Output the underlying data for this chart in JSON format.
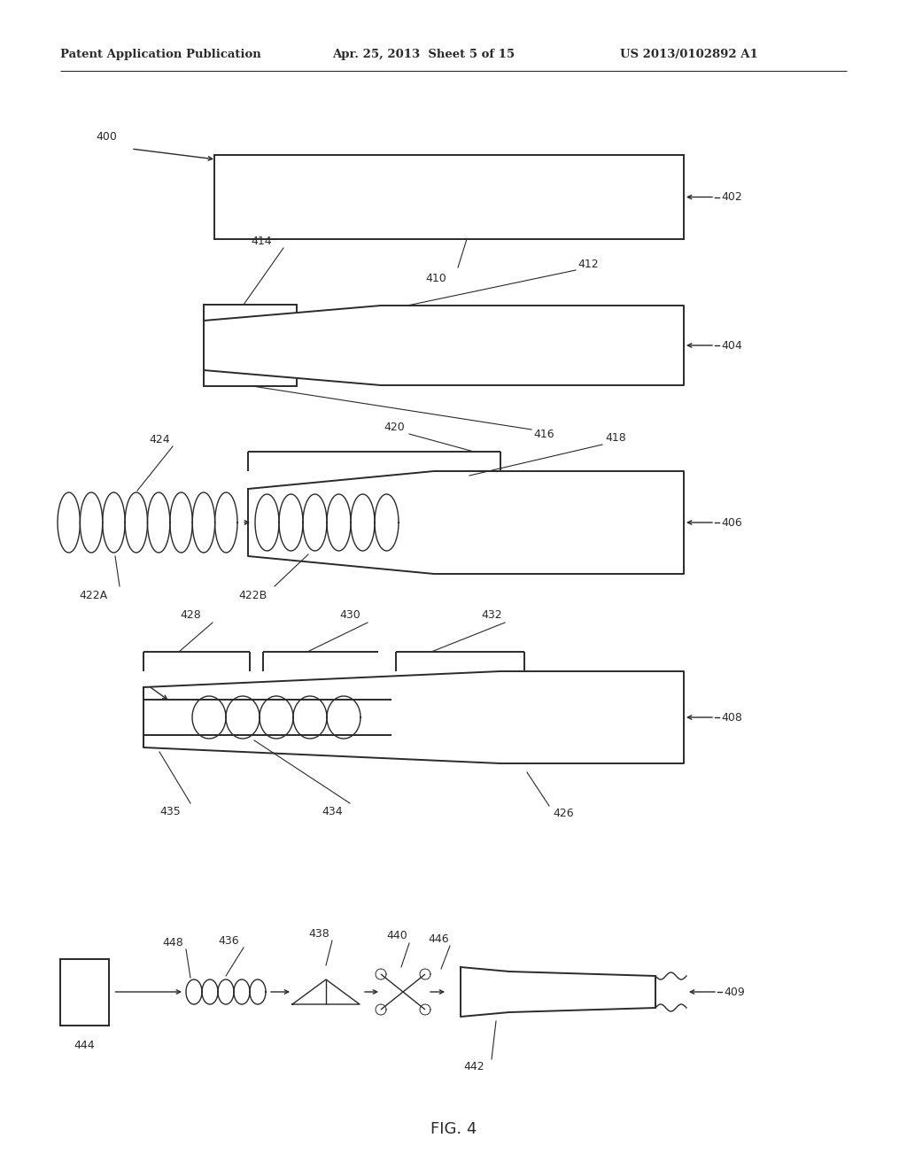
{
  "bg_color": "#ffffff",
  "line_color": "#2a2a2a",
  "lw": 1.4,
  "lw_thin": 1.0,
  "header_left": "Patent Application Publication",
  "header_mid": "Apr. 25, 2013  Sheet 5 of 15",
  "header_right": "US 2013/0102892 A1",
  "fig_label": "FIG. 4"
}
